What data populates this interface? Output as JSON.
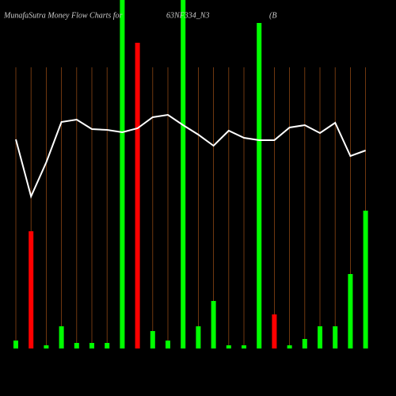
{
  "chart_data": {
    "type": "bar-line",
    "title": [
      "MunafaSutra  Money Flow  Charts for",
      "63NF334_N3",
      "(B"
    ],
    "categories": [
      null,
      null,
      null,
      null,
      null,
      null,
      null,
      null,
      null,
      null,
      null,
      null,
      null,
      null,
      null,
      null,
      null,
      null,
      null,
      null,
      null,
      null,
      null,
      null
    ],
    "bars": {
      "values": [
        10,
        148,
        4,
        28,
        7,
        7,
        7,
        440,
        386,
        22,
        10,
        440,
        28,
        60,
        4,
        4,
        411,
        43,
        4,
        12,
        28,
        28,
        94,
        174
      ],
      "colors": [
        "#00ff00",
        "#ff0000",
        "#00ff00",
        "#00ff00",
        "#00ff00",
        "#00ff00",
        "#00ff00",
        "#00ff00",
        "#ff0000",
        "#00ff00",
        "#00ff00",
        "#00ff00",
        "#00ff00",
        "#00ff00",
        "#00ff00",
        "#00ff00",
        "#00ff00",
        "#ff0000",
        "#00ff00",
        "#00ff00",
        "#00ff00",
        "#00ff00",
        "#00ff00",
        "#00ff00"
      ]
    },
    "line": {
      "values": [
        264,
        192,
        235,
        286,
        289,
        277,
        276,
        273,
        278,
        292,
        295,
        282,
        270,
        256,
        275,
        266,
        263,
        263,
        279,
        282,
        272,
        285,
        243,
        250
      ],
      "color": "#ffffff"
    },
    "ylim": [
      0,
      440
    ]
  }
}
